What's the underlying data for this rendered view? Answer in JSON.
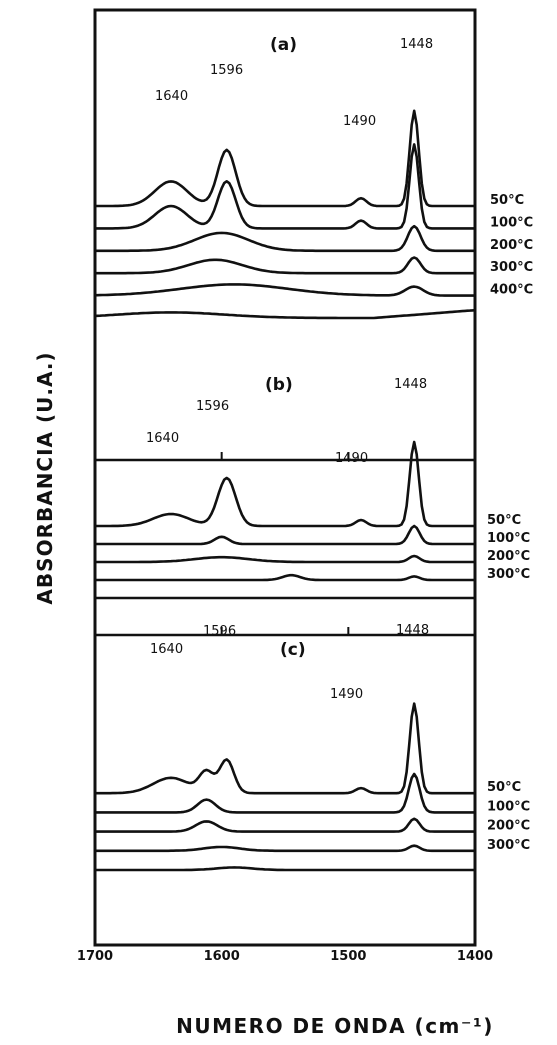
{
  "chart_data": {
    "type": "line",
    "xlabel": "NUMERO DE ONDA (cm⁻¹)",
    "ylabel": "ABSORBANCIA (U.A.)",
    "xlim": [
      1700,
      1400
    ],
    "x_reversed": true,
    "x_ticks": [
      "1700",
      "1600",
      "1500",
      "1400"
    ],
    "panels": [
      {
        "id": "a",
        "label": "(a)",
        "peak_labels": [
          "1640",
          "1596",
          "1490",
          "1448"
        ],
        "series": [
          {
            "name": "50°C",
            "label": "50°C",
            "baseline": 10,
            "peaks": [
              [
                1640,
                2.2,
                18
              ],
              [
                1596,
                5.0,
                10
              ],
              [
                1490,
                0.7,
                6
              ],
              [
                1448,
                8.5,
                5
              ]
            ],
            "slope": 0
          },
          {
            "name": "100°C",
            "label": "100°C",
            "baseline": 8,
            "peaks": [
              [
                1640,
                2.0,
                18
              ],
              [
                1596,
                4.2,
                10
              ],
              [
                1490,
                0.7,
                6
              ],
              [
                1448,
                7.5,
                5
              ]
            ],
            "slope": 0
          },
          {
            "name": "200°C",
            "label": "200°C",
            "baseline": 6,
            "peaks": [
              [
                1600,
                1.6,
                30
              ],
              [
                1448,
                2.2,
                7
              ]
            ],
            "slope": 0
          },
          {
            "name": "300°C",
            "label": "300°C",
            "baseline": 4,
            "peaks": [
              [
                1605,
                1.2,
                30
              ],
              [
                1448,
                1.4,
                7
              ]
            ],
            "slope": 0
          },
          {
            "name": "400°C",
            "label": "400°C",
            "baseline": 2,
            "peaks": [
              [
                1590,
                1.0,
                60
              ],
              [
                1448,
                0.8,
                10
              ]
            ],
            "slope": 0
          },
          {
            "name": "",
            "label": "",
            "baseline": 0,
            "peaks": [
              [
                1640,
                0.5,
                60
              ]
            ],
            "slope": 0.7
          }
        ]
      },
      {
        "id": "b",
        "label": "(b)",
        "peak_labels": [
          "1640",
          "1596",
          "1490",
          "1448"
        ],
        "series": [
          {
            "name": "50°C",
            "label": "50°C",
            "baseline": 6,
            "peaks": [
              [
                1640,
                1.0,
                20
              ],
              [
                1596,
                4.0,
                10
              ],
              [
                1490,
                0.5,
                6
              ],
              [
                1448,
                7.0,
                5
              ]
            ],
            "slope": 0
          },
          {
            "name": "100°C",
            "label": "100°C",
            "baseline": 4.5,
            "peaks": [
              [
                1600,
                0.6,
                8
              ],
              [
                1448,
                1.5,
                6
              ]
            ],
            "slope": 0
          },
          {
            "name": "200°C",
            "label": "200°C",
            "baseline": 3,
            "peaks": [
              [
                1600,
                0.4,
                30
              ],
              [
                1448,
                0.5,
                6
              ]
            ],
            "slope": 0
          },
          {
            "name": "300°C",
            "label": "300°C",
            "baseline": 1.5,
            "peaks": [
              [
                1545,
                0.4,
                10
              ],
              [
                1448,
                0.3,
                6
              ]
            ],
            "slope": 0
          },
          {
            "name": "",
            "label": "",
            "baseline": 0,
            "peaks": [],
            "slope": 0
          }
        ]
      },
      {
        "id": "c",
        "label": "(c)",
        "peak_labels": [
          "1640",
          "1596",
          "1490",
          "1448"
        ],
        "series": [
          {
            "name": "50°C",
            "label": "50°C",
            "baseline": 6,
            "peaks": [
              [
                1640,
                1.2,
                20
              ],
              [
                1612,
                1.6,
                8
              ],
              [
                1596,
                2.6,
                8
              ],
              [
                1490,
                0.4,
                6
              ],
              [
                1448,
                7.0,
                5
              ]
            ],
            "slope": 0
          },
          {
            "name": "100°C",
            "label": "100°C",
            "baseline": 4.5,
            "peaks": [
              [
                1612,
                1.0,
                10
              ],
              [
                1448,
                3.0,
                6
              ]
            ],
            "slope": 0
          },
          {
            "name": "200°C",
            "label": "200°C",
            "baseline": 3,
            "peaks": [
              [
                1612,
                0.8,
                12
              ],
              [
                1448,
                1.0,
                6
              ]
            ],
            "slope": 0
          },
          {
            "name": "300°C",
            "label": "300°C",
            "baseline": 1.5,
            "peaks": [
              [
                1600,
                0.3,
                20
              ],
              [
                1448,
                0.4,
                6
              ]
            ],
            "slope": 0
          },
          {
            "name": "",
            "label": "",
            "baseline": 0,
            "peaks": [
              [
                1590,
                0.2,
                20
              ]
            ],
            "slope": 0
          }
        ]
      }
    ]
  }
}
